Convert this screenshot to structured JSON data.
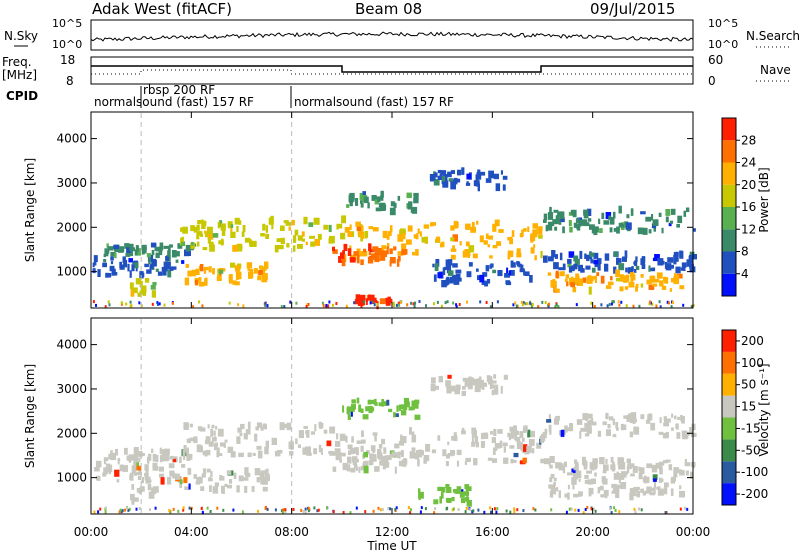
{
  "header": {
    "station": "Adak West (fitACF)",
    "beam": "Beam 08",
    "date": "09/Jul/2015"
  },
  "noise_panel": {
    "left_label": "N.Sky",
    "right_label": "N.Search",
    "left_ticks": [
      "10^5",
      "10^0"
    ],
    "right_ticks": [
      "10^5",
      "10^0"
    ]
  },
  "freq_panel": {
    "left_label_1": "Freq.",
    "left_label_2": "[MHz]",
    "right_label": "Nave",
    "left_ticks": [
      "18",
      "8"
    ],
    "right_ticks": [
      "60",
      "0"
    ]
  },
  "cpid_panel": {
    "label": "CPID",
    "segments": [
      {
        "start_hour": 0,
        "end_hour": 2,
        "text": "normalsound (fast) 157 RF"
      },
      {
        "start_hour": 2,
        "end_hour": 8,
        "text": "rbsp 200 RF"
      },
      {
        "start_hour": 8,
        "end_hour": 24,
        "text": "normalsound (fast) 157 RF"
      }
    ]
  },
  "chart_data": [
    {
      "type": "heatmap",
      "name": "power",
      "ylabel": "Slant Range [km]",
      "ylim": [
        180,
        4600
      ],
      "yticks": [
        1000,
        2000,
        3000,
        4000
      ],
      "colorbar_label": "Power [dB]",
      "colorbar_ticks": [
        4,
        8,
        12,
        16,
        20,
        24,
        28
      ],
      "colorbar_range": [
        0,
        30
      ],
      "colors": [
        "#0010ff",
        "#2050c0",
        "#3a8a6a",
        "#58b050",
        "#c8c800",
        "#ffb000",
        "#ff7000",
        "#ff2000"
      ],
      "bands": [
        {
          "t0": 0.0,
          "t1": 3.6,
          "r0": 900,
          "r1": 1300,
          "level": 6
        },
        {
          "t0": 0.5,
          "t1": 4.0,
          "r0": 1350,
          "r1": 1600,
          "level": 9
        },
        {
          "t0": 3.5,
          "t1": 7.0,
          "r0": 700,
          "r1": 1150,
          "level": 19
        },
        {
          "t0": 1.5,
          "t1": 2.5,
          "r0": 450,
          "r1": 800,
          "level": 18
        },
        {
          "t0": 3.5,
          "t1": 10.0,
          "r0": 1500,
          "r1": 2200,
          "level": 17
        },
        {
          "t0": 10.0,
          "t1": 18.0,
          "r0": 1300,
          "r1": 2100,
          "level": 20
        },
        {
          "t0": 9.6,
          "t1": 12.5,
          "r0": 1150,
          "r1": 1550,
          "level": 26
        },
        {
          "t0": 10.0,
          "t1": 13.0,
          "r0": 2350,
          "r1": 2750,
          "level": 10
        },
        {
          "t0": 13.5,
          "t1": 16.5,
          "r0": 2900,
          "r1": 3300,
          "level": 7
        },
        {
          "t0": 13.5,
          "t1": 17.5,
          "r0": 700,
          "r1": 1200,
          "level": 6
        },
        {
          "t0": 18.0,
          "t1": 24.0,
          "r0": 1000,
          "r1": 1400,
          "level": 7
        },
        {
          "t0": 18.2,
          "t1": 23.5,
          "r0": 550,
          "r1": 950,
          "level": 22
        },
        {
          "t0": 18.0,
          "t1": 24.0,
          "r0": 1900,
          "r1": 2400,
          "level": 8
        },
        {
          "t0": 10.5,
          "t1": 12.0,
          "r0": 200,
          "r1": 420,
          "level": 27
        }
      ]
    },
    {
      "type": "heatmap",
      "name": "velocity",
      "ylabel": "Slant Range [km]",
      "ylim": [
        180,
        4600
      ],
      "yticks": [
        1000,
        2000,
        3000,
        4000
      ],
      "colorbar_label": "Velocity [m s⁻¹]",
      "colorbar_ticks": [
        200,
        100,
        50,
        15,
        -15,
        -50,
        -100,
        -200
      ],
      "colorbar_range": [
        -250,
        250
      ],
      "colors": [
        "#0010ff",
        "#2a5aa0",
        "#3a8a4a",
        "#70c040",
        "#c8c8c0",
        "#ffb000",
        "#ff7000",
        "#ff2000"
      ],
      "bands": [
        {
          "t0": 0.0,
          "t1": 3.6,
          "r0": 900,
          "r1": 1300,
          "level": 0
        },
        {
          "t0": 0.5,
          "t1": 4.0,
          "r0": 1350,
          "r1": 1600,
          "level": 0
        },
        {
          "t0": 3.5,
          "t1": 7.0,
          "r0": 700,
          "r1": 1150,
          "level": 0
        },
        {
          "t0": 1.5,
          "t1": 2.5,
          "r0": 450,
          "r1": 800,
          "level": 0
        },
        {
          "t0": 3.5,
          "t1": 10.0,
          "r0": 1500,
          "r1": 2200,
          "level": 0
        },
        {
          "t0": 10.0,
          "t1": 18.0,
          "r0": 1300,
          "r1": 2100,
          "level": 0
        },
        {
          "t0": 9.6,
          "t1": 12.5,
          "r0": 1150,
          "r1": 1550,
          "level": 0
        },
        {
          "t0": 10.0,
          "t1": 13.0,
          "r0": 2350,
          "r1": 2750,
          "level": -40
        },
        {
          "t0": 13.5,
          "t1": 16.5,
          "r0": 2900,
          "r1": 3300,
          "level": 30
        },
        {
          "t0": 13.0,
          "t1": 15.0,
          "r0": 400,
          "r1": 800,
          "level": -60
        },
        {
          "t0": 15.5,
          "t1": 17.5,
          "r0": 1600,
          "r1": 2100,
          "level": 40
        },
        {
          "t0": 18.0,
          "t1": 24.0,
          "r0": 1000,
          "r1": 1400,
          "level": 0
        },
        {
          "t0": 18.2,
          "t1": 23.5,
          "r0": 550,
          "r1": 950,
          "level": 0
        },
        {
          "t0": 18.0,
          "t1": 24.0,
          "r0": 1900,
          "r1": 2400,
          "level": 0
        }
      ]
    }
  ],
  "time_axis": {
    "xlabel": "Time UT",
    "xlim_hours": [
      0,
      24
    ],
    "ticks": [
      "00:00",
      "04:00",
      "08:00",
      "12:00",
      "16:00",
      "20:00",
      "00:00"
    ]
  }
}
